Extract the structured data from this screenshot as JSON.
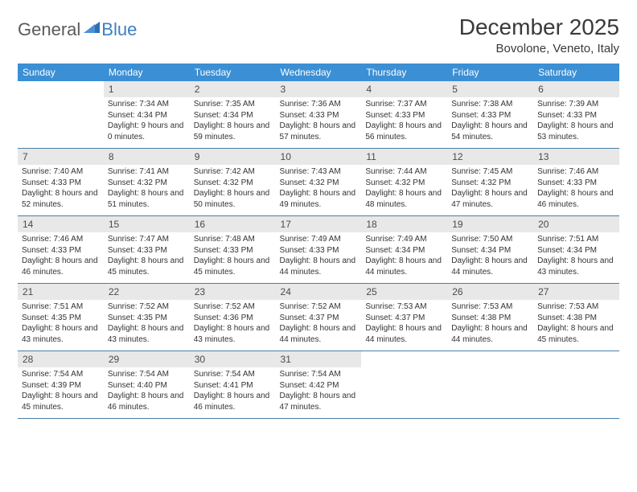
{
  "logo": {
    "text1": "General",
    "text2": "Blue"
  },
  "title": "December 2025",
  "location": "Bovolone, Veneto, Italy",
  "colors": {
    "header_bg": "#3b8fd4",
    "header_text": "#ffffff",
    "daynum_bg": "#e8e8e8",
    "rule": "#4a7fa8",
    "logo_gray": "#5a5a5a",
    "logo_blue": "#3b7fc4"
  },
  "day_names": [
    "Sunday",
    "Monday",
    "Tuesday",
    "Wednesday",
    "Thursday",
    "Friday",
    "Saturday"
  ],
  "weeks": [
    [
      null,
      {
        "n": "1",
        "sr": "7:34 AM",
        "ss": "4:34 PM",
        "dl": "9 hours and 0 minutes."
      },
      {
        "n": "2",
        "sr": "7:35 AM",
        "ss": "4:34 PM",
        "dl": "8 hours and 59 minutes."
      },
      {
        "n": "3",
        "sr": "7:36 AM",
        "ss": "4:33 PM",
        "dl": "8 hours and 57 minutes."
      },
      {
        "n": "4",
        "sr": "7:37 AM",
        "ss": "4:33 PM",
        "dl": "8 hours and 56 minutes."
      },
      {
        "n": "5",
        "sr": "7:38 AM",
        "ss": "4:33 PM",
        "dl": "8 hours and 54 minutes."
      },
      {
        "n": "6",
        "sr": "7:39 AM",
        "ss": "4:33 PM",
        "dl": "8 hours and 53 minutes."
      }
    ],
    [
      {
        "n": "7",
        "sr": "7:40 AM",
        "ss": "4:33 PM",
        "dl": "8 hours and 52 minutes."
      },
      {
        "n": "8",
        "sr": "7:41 AM",
        "ss": "4:32 PM",
        "dl": "8 hours and 51 minutes."
      },
      {
        "n": "9",
        "sr": "7:42 AM",
        "ss": "4:32 PM",
        "dl": "8 hours and 50 minutes."
      },
      {
        "n": "10",
        "sr": "7:43 AM",
        "ss": "4:32 PM",
        "dl": "8 hours and 49 minutes."
      },
      {
        "n": "11",
        "sr": "7:44 AM",
        "ss": "4:32 PM",
        "dl": "8 hours and 48 minutes."
      },
      {
        "n": "12",
        "sr": "7:45 AM",
        "ss": "4:32 PM",
        "dl": "8 hours and 47 minutes."
      },
      {
        "n": "13",
        "sr": "7:46 AM",
        "ss": "4:33 PM",
        "dl": "8 hours and 46 minutes."
      }
    ],
    [
      {
        "n": "14",
        "sr": "7:46 AM",
        "ss": "4:33 PM",
        "dl": "8 hours and 46 minutes."
      },
      {
        "n": "15",
        "sr": "7:47 AM",
        "ss": "4:33 PM",
        "dl": "8 hours and 45 minutes."
      },
      {
        "n": "16",
        "sr": "7:48 AM",
        "ss": "4:33 PM",
        "dl": "8 hours and 45 minutes."
      },
      {
        "n": "17",
        "sr": "7:49 AM",
        "ss": "4:33 PM",
        "dl": "8 hours and 44 minutes."
      },
      {
        "n": "18",
        "sr": "7:49 AM",
        "ss": "4:34 PM",
        "dl": "8 hours and 44 minutes."
      },
      {
        "n": "19",
        "sr": "7:50 AM",
        "ss": "4:34 PM",
        "dl": "8 hours and 44 minutes."
      },
      {
        "n": "20",
        "sr": "7:51 AM",
        "ss": "4:34 PM",
        "dl": "8 hours and 43 minutes."
      }
    ],
    [
      {
        "n": "21",
        "sr": "7:51 AM",
        "ss": "4:35 PM",
        "dl": "8 hours and 43 minutes."
      },
      {
        "n": "22",
        "sr": "7:52 AM",
        "ss": "4:35 PM",
        "dl": "8 hours and 43 minutes."
      },
      {
        "n": "23",
        "sr": "7:52 AM",
        "ss": "4:36 PM",
        "dl": "8 hours and 43 minutes."
      },
      {
        "n": "24",
        "sr": "7:52 AM",
        "ss": "4:37 PM",
        "dl": "8 hours and 44 minutes."
      },
      {
        "n": "25",
        "sr": "7:53 AM",
        "ss": "4:37 PM",
        "dl": "8 hours and 44 minutes."
      },
      {
        "n": "26",
        "sr": "7:53 AM",
        "ss": "4:38 PM",
        "dl": "8 hours and 44 minutes."
      },
      {
        "n": "27",
        "sr": "7:53 AM",
        "ss": "4:38 PM",
        "dl": "8 hours and 45 minutes."
      }
    ],
    [
      {
        "n": "28",
        "sr": "7:54 AM",
        "ss": "4:39 PM",
        "dl": "8 hours and 45 minutes."
      },
      {
        "n": "29",
        "sr": "7:54 AM",
        "ss": "4:40 PM",
        "dl": "8 hours and 46 minutes."
      },
      {
        "n": "30",
        "sr": "7:54 AM",
        "ss": "4:41 PM",
        "dl": "8 hours and 46 minutes."
      },
      {
        "n": "31",
        "sr": "7:54 AM",
        "ss": "4:42 PM",
        "dl": "8 hours and 47 minutes."
      },
      null,
      null,
      null
    ]
  ],
  "labels": {
    "sunrise": "Sunrise:",
    "sunset": "Sunset:",
    "daylight": "Daylight:"
  }
}
